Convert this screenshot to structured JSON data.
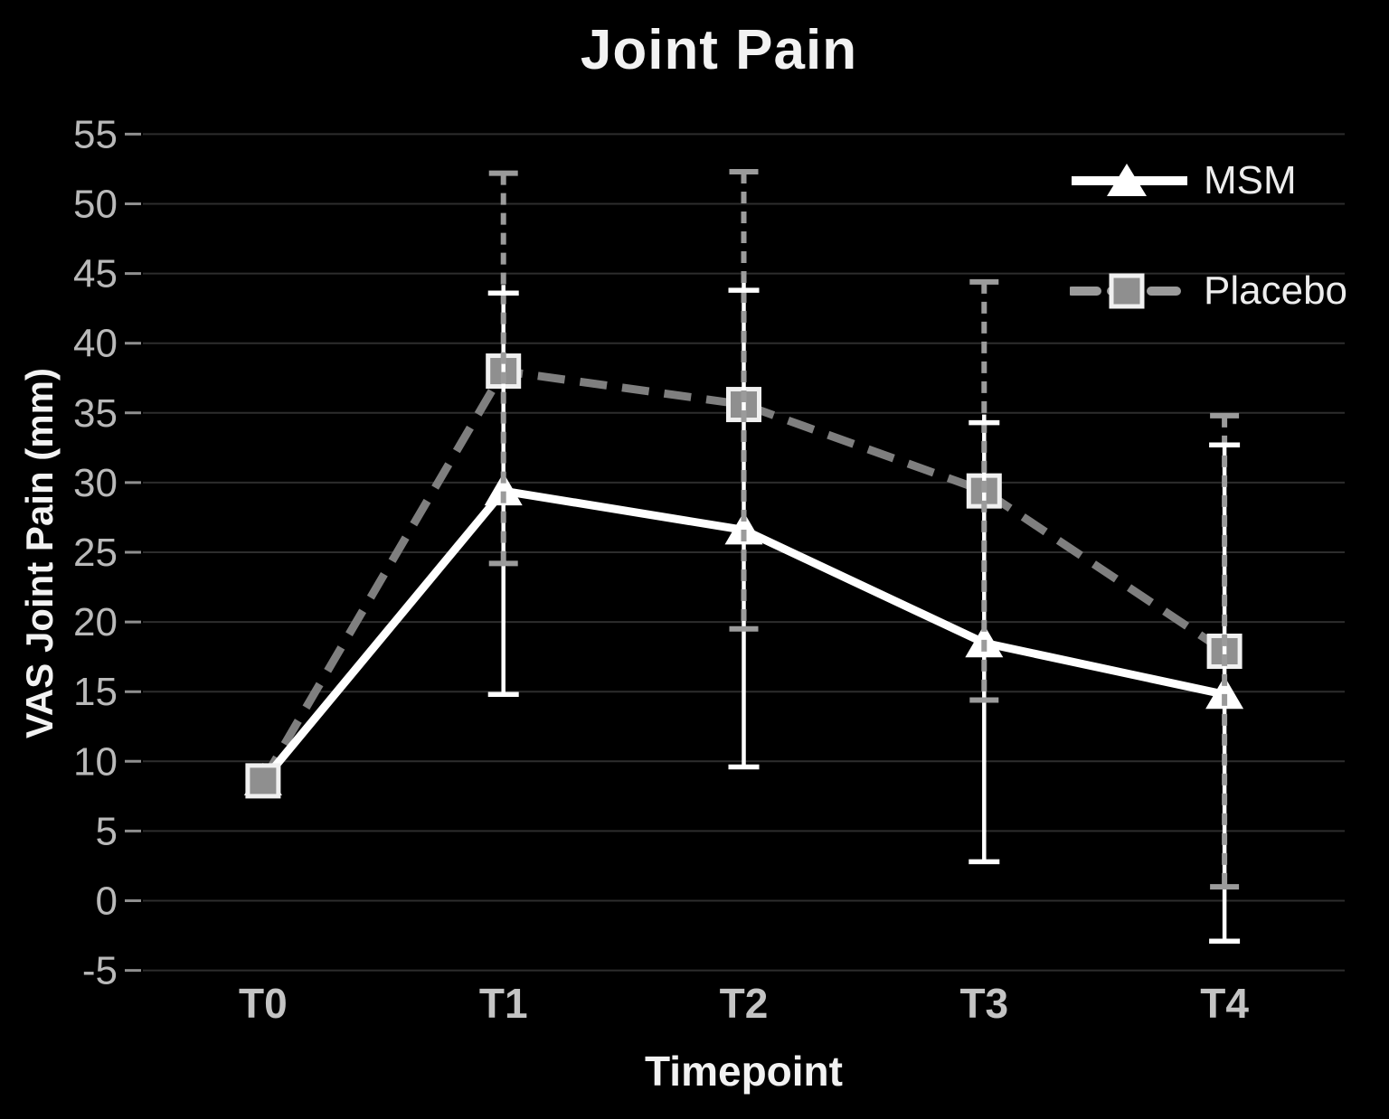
{
  "chart_data": {
    "type": "line",
    "title": "Joint Pain",
    "xlabel": "Timepoint",
    "ylabel": "VAS Joint Pain (mm)",
    "categories": [
      "T0",
      "T1",
      "T2",
      "T3",
      "T4"
    ],
    "yticks": [
      55,
      50,
      45,
      40,
      35,
      30,
      25,
      20,
      15,
      10,
      5,
      0,
      -5
    ],
    "ylim": [
      -5,
      55
    ],
    "grid": "horizontal",
    "legend_position": "top-right",
    "series": [
      {
        "name": "MSM",
        "marker": "triangle",
        "line_style": "solid",
        "color": "#ffffff",
        "values": [
          8.6,
          29.4,
          26.6,
          18.5,
          14.8
        ],
        "err_upper": [
          null,
          43.6,
          43.8,
          34.3,
          32.7
        ],
        "err_lower": [
          null,
          14.8,
          9.6,
          2.8,
          -2.9
        ]
      },
      {
        "name": "Placebo",
        "marker": "square",
        "line_style": "dashed",
        "color": "#7f7f7f",
        "marker_fill": "#8f8f8f",
        "marker_border": "#f0f0f0",
        "error_color": "#9b9b9b",
        "values": [
          8.6,
          38.0,
          35.6,
          29.4,
          17.9
        ],
        "err_upper": [
          null,
          52.2,
          52.3,
          44.4,
          34.8
        ],
        "err_lower": [
          null,
          24.2,
          19.5,
          14.4,
          1.0
        ]
      }
    ],
    "colors": {
      "background": "#000000",
      "gridline": "#2d2d2d",
      "tick_mark": "#8f8f8f",
      "y_tick_label": "#b9b9b9",
      "x_tick_label": "#c4c4c4"
    }
  }
}
